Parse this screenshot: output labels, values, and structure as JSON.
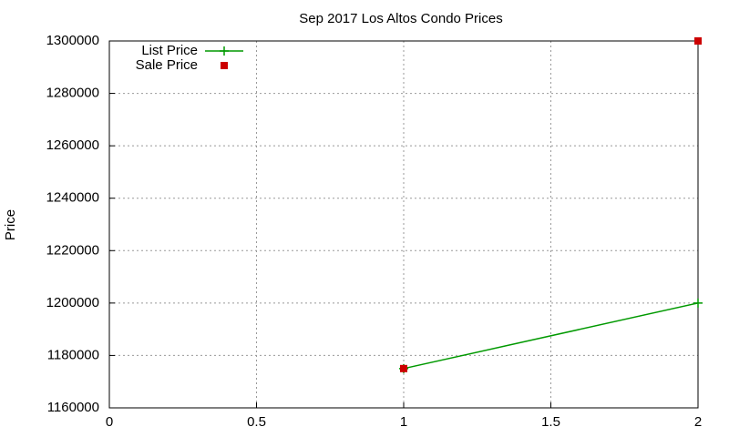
{
  "chart_data": {
    "type": "line",
    "title": "Sep 2017 Los Altos Condo Prices",
    "y_label": "Price",
    "xlim": [
      0,
      2
    ],
    "xticks": [
      0,
      0.5,
      1,
      1.5,
      2
    ],
    "ylim": [
      1160000,
      1300000
    ],
    "yticks": [
      1160000,
      1180000,
      1200000,
      1220000,
      1240000,
      1260000,
      1280000,
      1300000
    ],
    "grid": true,
    "legend": "top-left",
    "series": [
      {
        "name": "List Price",
        "color": "#009900",
        "style": "linespoints",
        "x": [
          1,
          2
        ],
        "values": [
          1175000,
          1200000
        ]
      },
      {
        "name": "Sale Price",
        "color": "#cc0000",
        "style": "points",
        "x": [
          1,
          2
        ],
        "values": [
          1175000,
          1300000
        ]
      }
    ]
  }
}
